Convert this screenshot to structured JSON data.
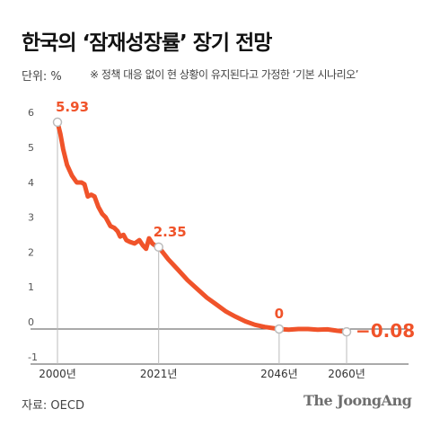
{
  "header": {
    "title": "한국의 ‘잠재성장률’ 장기 전망",
    "unit": "단위: %",
    "note": "※ 정책 대응 없이 현 상황이 유지된다고 가정한 ‘기본 시나리오’"
  },
  "footer": {
    "source": "자료: OECD",
    "logo": "The JoongAng"
  },
  "colors": {
    "line": "#f0532a",
    "axis": "#555555",
    "grid": "#bbbbbb",
    "label": "#f0532a"
  },
  "chart_data": {
    "type": "line",
    "title": "한국의 ‘잠재성장률’ 장기 전망",
    "ylabel": "단위: %",
    "xlim": [
      2000,
      2060
    ],
    "ylim": [
      -1,
      6
    ],
    "yticks": [
      "6",
      "5",
      "4",
      "3",
      "2",
      "1",
      "0",
      "-1"
    ],
    "xticks": [
      "2000년",
      "2021년",
      "2046년",
      "2060년"
    ],
    "series": [
      {
        "points": [
          [
            2000,
            5.93
          ],
          [
            2000.6,
            5.6
          ],
          [
            2001.2,
            5.15
          ],
          [
            2002,
            4.7
          ],
          [
            2003,
            4.4
          ],
          [
            2004,
            4.2
          ],
          [
            2005,
            4.2
          ],
          [
            2005.6,
            4.15
          ],
          [
            2006.3,
            3.8
          ],
          [
            2007,
            3.85
          ],
          [
            2007.7,
            3.8
          ],
          [
            2008.5,
            3.5
          ],
          [
            2009.3,
            3.3
          ],
          [
            2010,
            3.2
          ],
          [
            2011,
            2.95
          ],
          [
            2011.8,
            2.9
          ],
          [
            2012.5,
            2.8
          ],
          [
            2013,
            2.65
          ],
          [
            2013.7,
            2.7
          ],
          [
            2014.3,
            2.55
          ],
          [
            2015,
            2.5
          ],
          [
            2016,
            2.45
          ],
          [
            2017,
            2.55
          ],
          [
            2017.7,
            2.4
          ],
          [
            2018.4,
            2.3
          ],
          [
            2019,
            2.6
          ],
          [
            2019.7,
            2.45
          ],
          [
            2020.4,
            2.38
          ],
          [
            2021,
            2.35
          ],
          [
            2023,
            2.0
          ],
          [
            2025,
            1.7
          ],
          [
            2027,
            1.4
          ],
          [
            2029,
            1.15
          ],
          [
            2031,
            0.9
          ],
          [
            2033,
            0.7
          ],
          [
            2035,
            0.5
          ],
          [
            2037,
            0.35
          ],
          [
            2039,
            0.22
          ],
          [
            2041,
            0.12
          ],
          [
            2043,
            0.06
          ],
          [
            2046,
            0.0
          ],
          [
            2048,
            -0.02
          ],
          [
            2050,
            0.0
          ],
          [
            2052,
            0.0
          ],
          [
            2054,
            -0.02
          ],
          [
            2056,
            -0.01
          ],
          [
            2058,
            -0.05
          ],
          [
            2060,
            -0.08
          ]
        ]
      }
    ],
    "highlights": [
      {
        "x": 2000,
        "y": 5.93,
        "label": "5.93"
      },
      {
        "x": 2021,
        "y": 2.35,
        "label": "2.35"
      },
      {
        "x": 2046,
        "y": 0,
        "label": "0"
      },
      {
        "x": 2060,
        "y": -0.08,
        "label": "−0.08"
      }
    ],
    "grid": false
  }
}
